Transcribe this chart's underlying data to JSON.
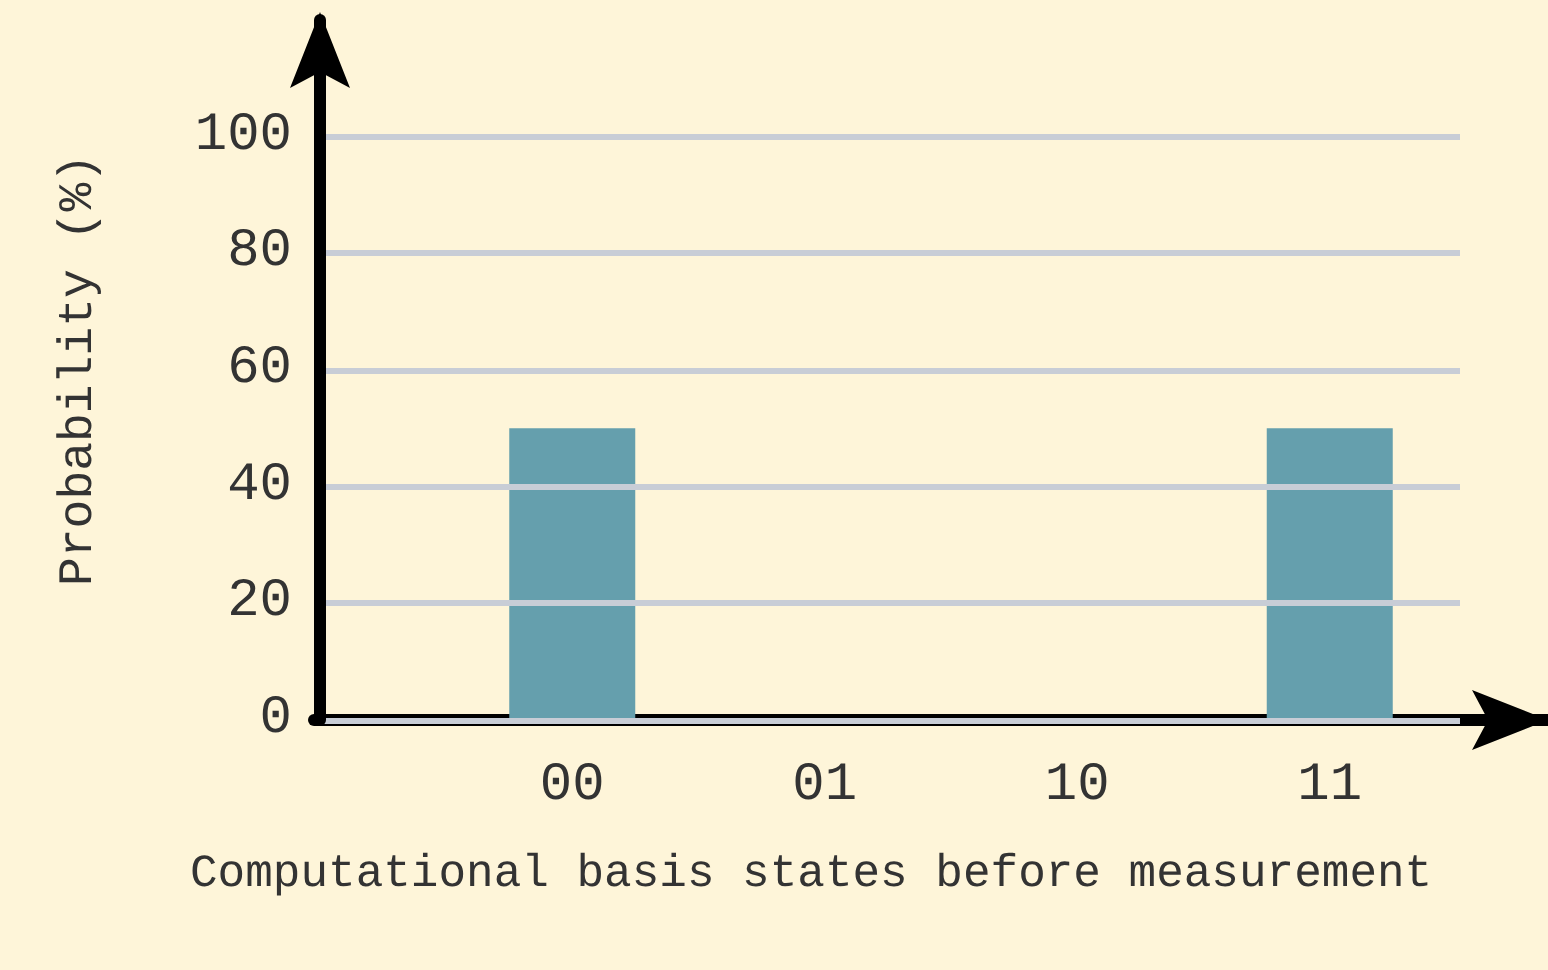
{
  "chart_data": {
    "type": "bar",
    "xlabel": "Computational basis states before measurement",
    "ylabel": "Probability (%)",
    "categories": [
      "00",
      "01",
      "10",
      "11"
    ],
    "values": [
      50,
      0,
      0,
      50
    ],
    "color": "#659fad",
    "ylim": [
      0,
      120
    ],
    "yticks": [
      0,
      20,
      40,
      60,
      80,
      100
    ],
    "grid": "y"
  }
}
